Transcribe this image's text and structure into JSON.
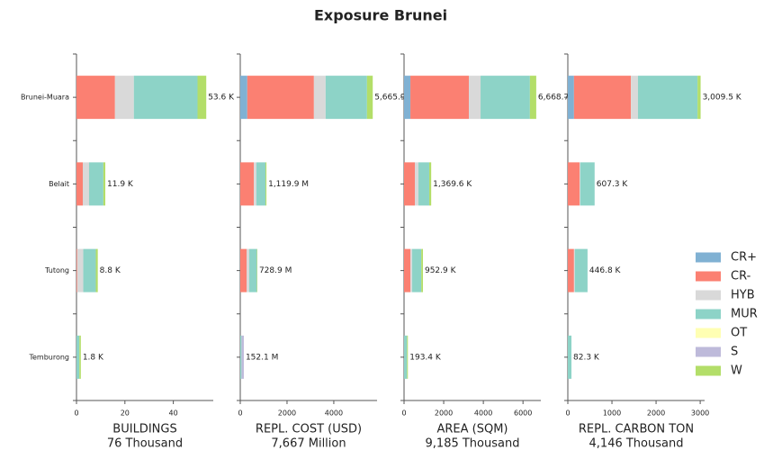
{
  "title": "Exposure Brunei",
  "chart_data": [
    {
      "type": "bar",
      "orientation": "horizontal",
      "xlabel": "BUILDINGS",
      "subtitle": "76 Thousand",
      "categories": [
        "Brunei-Muara",
        "Belait",
        "Tutong",
        "Temburong"
      ],
      "xlim": [
        0,
        56.5
      ],
      "xticks": [
        0,
        20,
        40
      ],
      "series": [
        {
          "name": "CR+",
          "color": "#80b1d3",
          "values": [
            0,
            0,
            0,
            0
          ]
        },
        {
          "name": "CR-",
          "color": "#fb8072",
          "values": [
            15.9,
            2.6,
            0.3,
            0
          ]
        },
        {
          "name": "HYB",
          "color": "#d9d9d9",
          "values": [
            7.8,
            2.6,
            2.5,
            0
          ]
        },
        {
          "name": "MUR",
          "color": "#8dd3c7",
          "values": [
            26.3,
            5.9,
            5.2,
            1.2
          ]
        },
        {
          "name": "OT",
          "color": "#ffffb3",
          "values": [
            0,
            0,
            0,
            0
          ]
        },
        {
          "name": "S",
          "color": "#bebada",
          "values": [
            0,
            0,
            0,
            0
          ]
        },
        {
          "name": "W",
          "color": "#b3de69",
          "values": [
            3.6,
            0.8,
            0.8,
            0.6
          ]
        }
      ],
      "totals": [
        53.6,
        11.9,
        8.8,
        1.8
      ],
      "total_labels": [
        "53.6 K",
        "11.9 K",
        "8.8 K",
        "1.8 K"
      ]
    },
    {
      "type": "bar",
      "orientation": "horizontal",
      "xlabel": "REPL. COST (USD)",
      "subtitle": "7,667 Million",
      "xlim": [
        0,
        5850
      ],
      "xticks": [
        0,
        2000,
        4000
      ],
      "series": [
        {
          "values": [
            300,
            0,
            0,
            0
          ]
        },
        {
          "values": [
            2850,
            580,
            270,
            0
          ]
        },
        {
          "values": [
            500,
            110,
            110,
            0
          ]
        },
        {
          "values": [
            1770,
            390,
            330,
            52.1
          ]
        },
        {
          "values": [
            0,
            0,
            0,
            0
          ]
        },
        {
          "values": [
            0,
            0,
            0,
            100
          ]
        },
        {
          "values": [
            245.9,
            39.9,
            18.9,
            0
          ]
        }
      ],
      "totals": [
        5665.9,
        1119.9,
        728.9,
        152.1
      ],
      "total_labels": [
        "5,665.9",
        "1,119.9 M",
        "728.9 M",
        "152.1 M"
      ]
    },
    {
      "type": "bar",
      "orientation": "horizontal",
      "xlabel": "AREA (SQM)",
      "subtitle": "9,185 Thousand",
      "xlim": [
        0,
        6900
      ],
      "xticks": [
        0,
        2000,
        4000,
        6000
      ],
      "series": [
        {
          "values": [
            320,
            0,
            0,
            0
          ]
        },
        {
          "values": [
            2950,
            545,
            320,
            0
          ]
        },
        {
          "values": [
            590,
            180,
            90,
            0
          ]
        },
        {
          "values": [
            2488.7,
            545,
            460,
            150
          ]
        },
        {
          "values": [
            0,
            0,
            0,
            0
          ]
        },
        {
          "values": [
            0,
            0,
            0,
            0
          ]
        },
        {
          "values": [
            320,
            99.6,
            82.9,
            43.4
          ]
        }
      ],
      "totals": [
        6668.7,
        1369.6,
        952.9,
        193.4
      ],
      "total_labels": [
        "6,668.7",
        "1,369.6 K",
        "952.9 K",
        "193.4 K"
      ]
    },
    {
      "type": "bar",
      "orientation": "horizontal",
      "xlabel": "REPL. CARBON TON",
      "subtitle": "4,146 Thousand",
      "xlim": [
        0,
        3100
      ],
      "xticks": [
        0,
        1000,
        2000,
        3000
      ],
      "series": [
        {
          "values": [
            140,
            0,
            0,
            0
          ]
        },
        {
          "values": [
            1290,
            265,
            140,
            0
          ]
        },
        {
          "values": [
            160,
            20,
            20,
            0
          ]
        },
        {
          "values": [
            1350,
            322.3,
            286.8,
            82.3
          ]
        },
        {
          "values": [
            0,
            0,
            0,
            0
          ]
        },
        {
          "values": [
            0,
            0,
            0,
            0
          ]
        },
        {
          "values": [
            69.5,
            0,
            0,
            0
          ]
        }
      ],
      "totals": [
        3009.5,
        607.3,
        446.8,
        82.3
      ],
      "total_labels": [
        "3,009.5 K",
        "607.3 K",
        "446.8 K",
        "82.3 K"
      ]
    }
  ]
}
